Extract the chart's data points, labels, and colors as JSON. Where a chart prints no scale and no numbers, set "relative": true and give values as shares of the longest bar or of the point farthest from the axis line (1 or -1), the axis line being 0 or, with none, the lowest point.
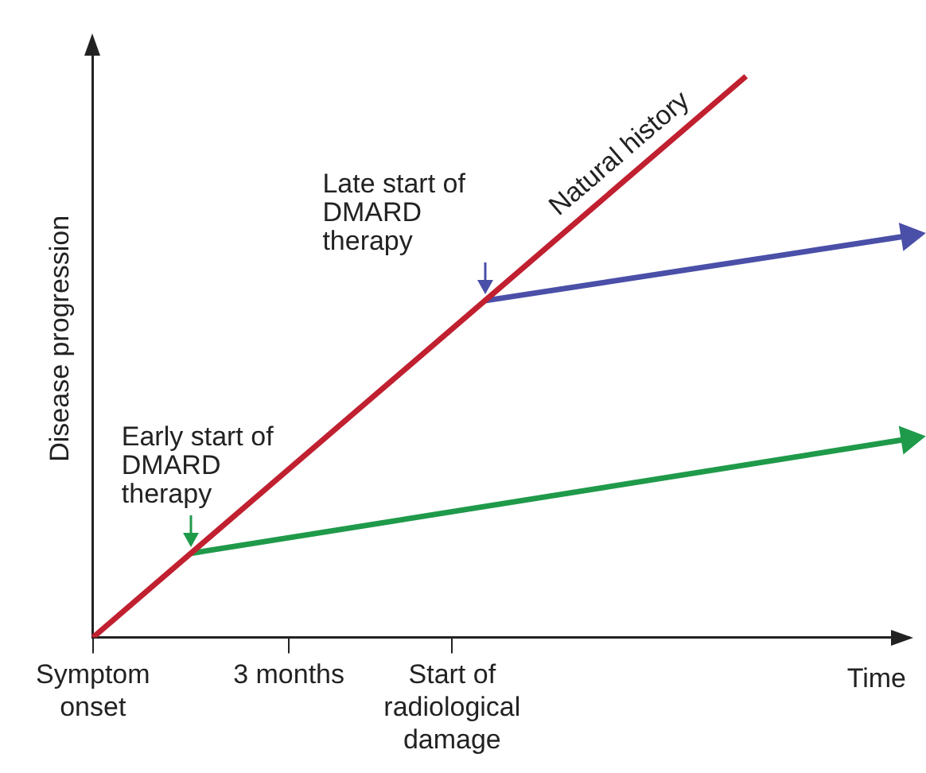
{
  "chart_data": {
    "type": "line",
    "relative": true,
    "xlabel": "Time",
    "ylabel": "Disease progression",
    "categories": [
      "Symptom onset",
      null,
      null,
      null,
      null,
      null,
      "3 months",
      null,
      null,
      null,
      null,
      "Start of radiological damage",
      null,
      null,
      null,
      null,
      null,
      null,
      null,
      null,
      null,
      null,
      null,
      null,
      null,
      null
    ],
    "series": [
      {
        "name": "Natural history",
        "color": "#c0202f",
        "values": [
          0,
          null,
          null,
          null,
          null,
          null,
          null,
          null,
          null,
          null,
          null,
          null,
          null,
          null,
          null,
          null,
          null,
          null,
          null,
          null,
          1,
          null,
          null,
          null,
          null,
          null
        ]
      },
      {
        "color": "#1f9a4a",
        "values": [
          null,
          null,
          null,
          0.15,
          null,
          null,
          null,
          null,
          null,
          null,
          null,
          null,
          null,
          null,
          null,
          null,
          null,
          null,
          null,
          null,
          null,
          null,
          null,
          null,
          null,
          0.354
        ]
      },
      {
        "color": "#4a4fa8",
        "values": [
          null,
          null,
          null,
          null,
          null,
          null,
          null,
          null,
          null,
          null,
          null,
          null,
          0.6,
          null,
          null,
          null,
          null,
          null,
          null,
          null,
          null,
          null,
          null,
          null,
          null,
          0.716
        ]
      }
    ],
    "annotations": [
      "Early start of DMARD therapy",
      "Late start of DMARD therapy"
    ],
    "legend": false,
    "grid": false
  }
}
